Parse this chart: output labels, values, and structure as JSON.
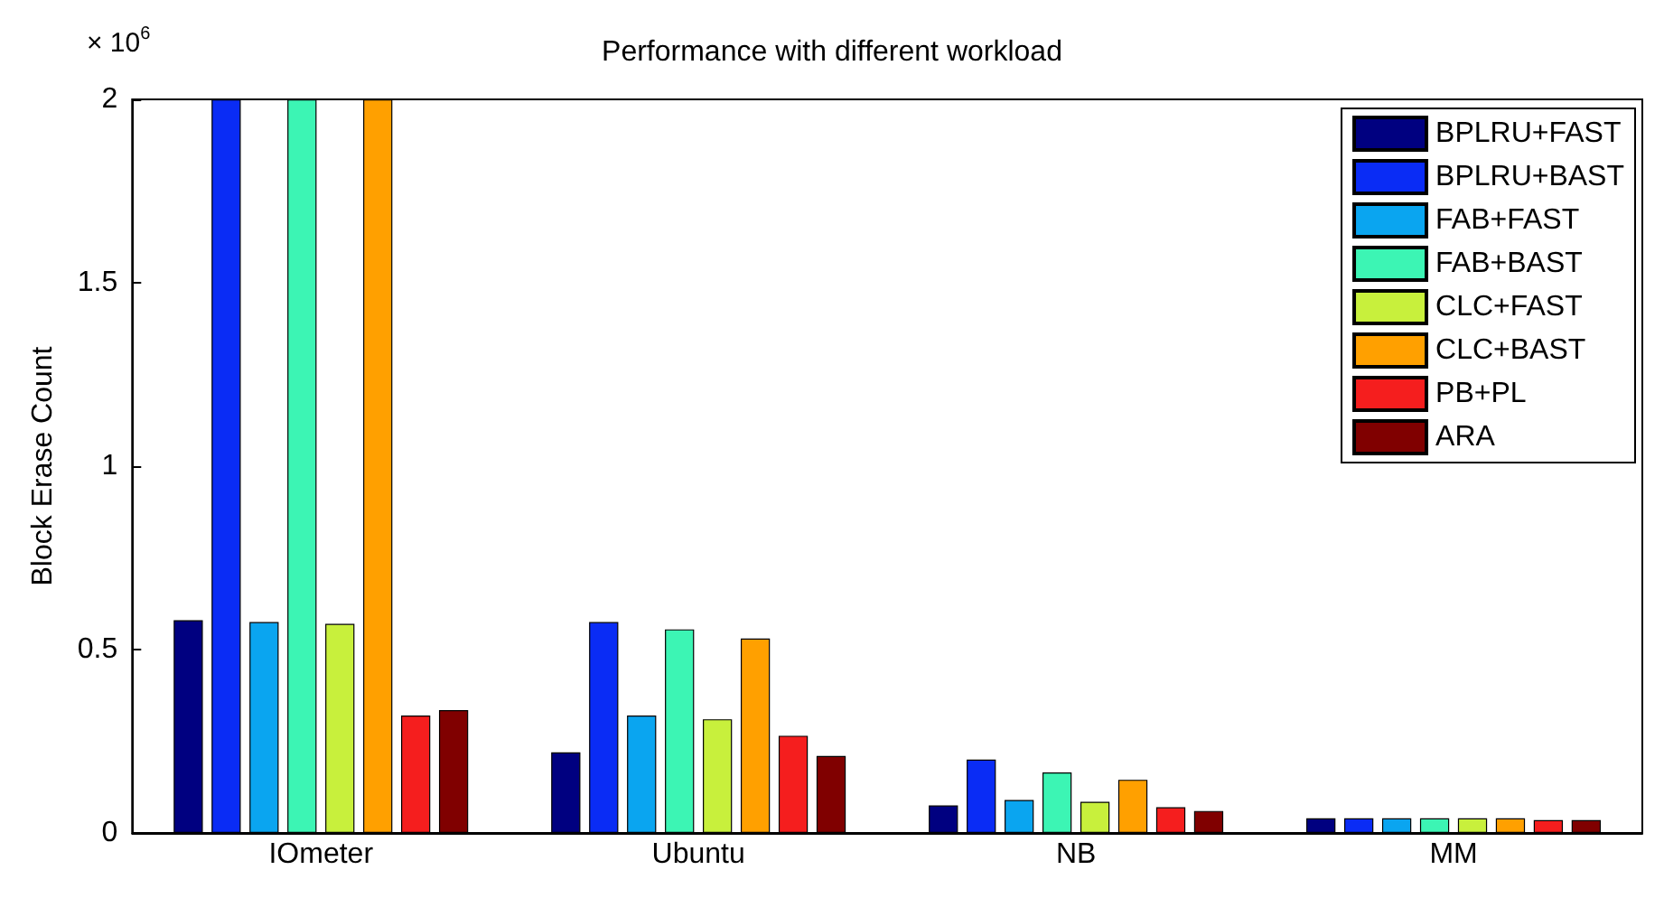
{
  "chart_data": {
    "type": "bar",
    "title": "Performance with different workload",
    "ylabel": "Block Erase Count",
    "annotations": [
      "× 10$^{6}$"
    ],
    "categories": [
      "IOmeter",
      "Ubuntu",
      "NB",
      "MM"
    ],
    "series": [
      {
        "name": "BPLRU+FAST",
        "color": "#000080",
        "values": [
          0.58,
          0.22,
          0.075,
          0.04
        ]
      },
      {
        "name": "BPLRU+BAST",
        "color": "#0a2cf5",
        "values": [
          2,
          0.575,
          0.2,
          0.04
        ]
      },
      {
        "name": "FAB+FAST",
        "color": "#0aa5f0",
        "values": [
          0.575,
          0.32,
          0.09,
          0.04
        ]
      },
      {
        "name": "FAB+BAST",
        "color": "#3cf5b4",
        "values": [
          2,
          0.555,
          0.165,
          0.04
        ]
      },
      {
        "name": "CLC+FAST",
        "color": "#c8f03c",
        "values": [
          0.57,
          0.31,
          0.085,
          0.04
        ]
      },
      {
        "name": "CLC+BAST",
        "color": "#ffa000",
        "values": [
          2,
          0.53,
          0.145,
          0.04
        ]
      },
      {
        "name": "PB+PL",
        "color": "#f51e1e",
        "values": [
          0.32,
          0.265,
          0.07,
          0.035
        ]
      },
      {
        "name": "ARA",
        "color": "#800000",
        "values": [
          0.335,
          0.21,
          0.06,
          0.035
        ]
      }
    ],
    "ylim": [
      0,
      2
    ],
    "yticks": [
      0,
      0.5,
      1,
      1.5,
      2
    ],
    "grid": false,
    "legend": "top right"
  }
}
